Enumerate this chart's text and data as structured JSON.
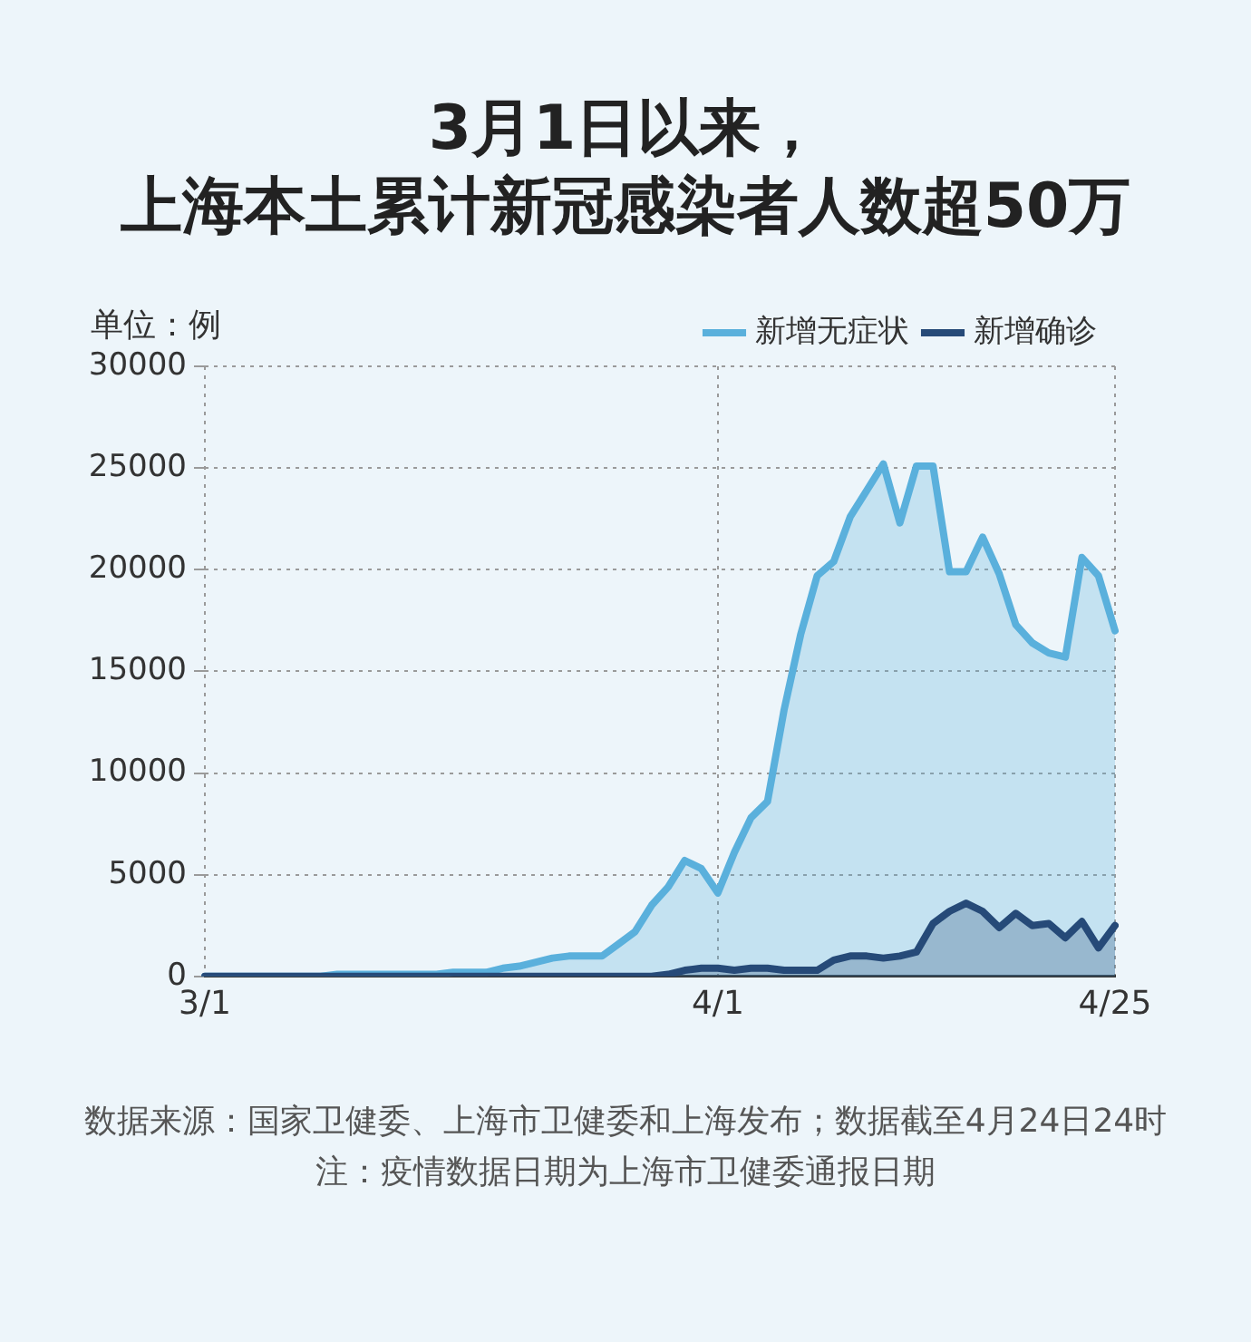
{
  "chart_data": {
    "type": "area",
    "title": "3月1日以来，上海本土累计新冠感染者人数超50万",
    "ylabel": "单位：例",
    "categories": [
      "3/1",
      null,
      null,
      null,
      null,
      null,
      null,
      null,
      null,
      null,
      null,
      null,
      null,
      null,
      null,
      null,
      null,
      null,
      null,
      null,
      null,
      null,
      null,
      null,
      null,
      null,
      null,
      null,
      null,
      null,
      null,
      "4/1",
      null,
      null,
      null,
      null,
      null,
      null,
      null,
      null,
      null,
      null,
      null,
      null,
      null,
      null,
      null,
      null,
      null,
      null,
      null,
      null,
      null,
      null,
      null,
      "4/25"
    ],
    "series": [
      {
        "name": "新增无症状",
        "color": "#5ab0dc",
        "values": [
          0,
          0,
          0,
          0,
          0,
          0,
          0,
          0,
          100,
          100,
          100,
          100,
          100,
          100,
          100,
          200,
          200,
          200,
          400,
          500,
          700,
          900,
          1000,
          1000,
          1000,
          1600,
          2200,
          3500,
          4400,
          5700,
          5300,
          4100,
          6100,
          7800,
          8600,
          13100,
          16800,
          19700,
          20400,
          22600,
          23900,
          25200,
          22300,
          25100,
          25100,
          19900,
          19900,
          21600,
          19800,
          17300,
          16400,
          15900,
          15700,
          20600,
          19700,
          17000
        ]
      },
      {
        "name": "新增确诊",
        "color": "#264a78",
        "values": [
          0,
          0,
          0,
          0,
          0,
          0,
          0,
          0,
          0,
          0,
          0,
          0,
          0,
          0,
          0,
          0,
          0,
          0,
          0,
          0,
          0,
          0,
          0,
          0,
          0,
          0,
          0,
          0,
          100,
          300,
          400,
          400,
          300,
          400,
          400,
          300,
          300,
          300,
          800,
          1000,
          1000,
          900,
          1000,
          1200,
          2600,
          3200,
          3600,
          3200,
          2400,
          3100,
          2500,
          2600,
          1900,
          2700,
          1400,
          2500
        ]
      }
    ],
    "ylim": [
      0,
      30000
    ],
    "yticks": [
      0,
      5000,
      10000,
      15000,
      20000,
      25000,
      30000
    ],
    "grid": true,
    "legend": "top right",
    "marker": "none",
    "annotations": [
      "数据来源：国家卫健委、上海市卫健委和上海发布；数据截至4月24日24时",
      "注：疫情数据日期为上海市卫健委通报日期"
    ]
  }
}
